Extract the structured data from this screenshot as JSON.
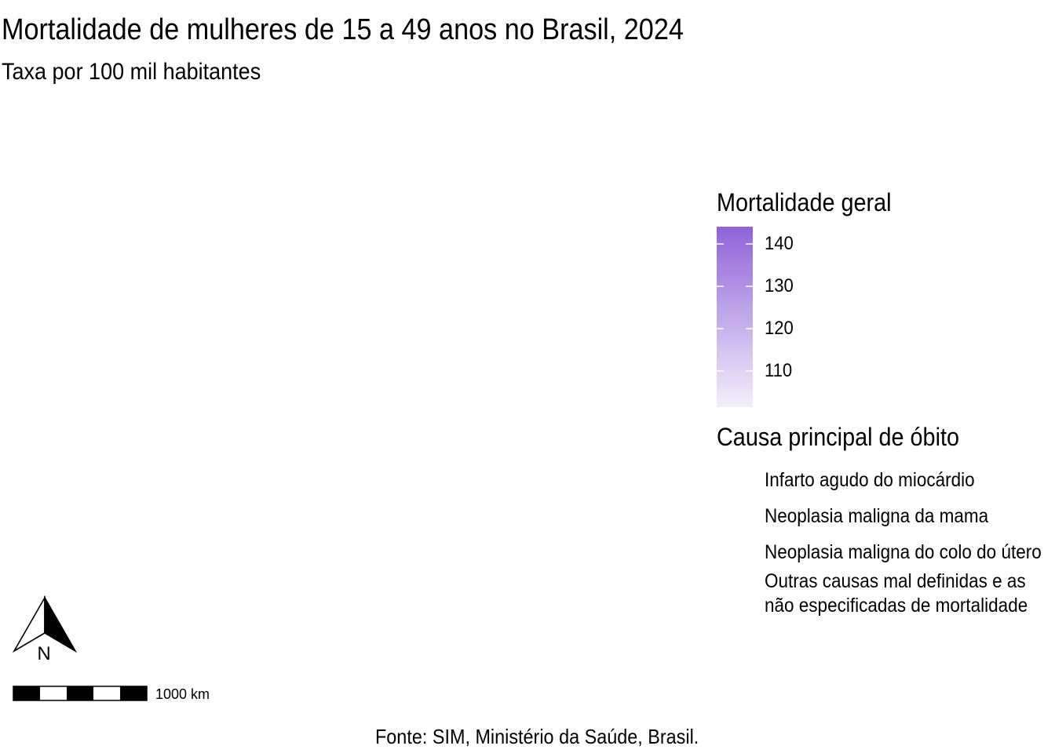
{
  "map": {
    "title": "Mortalidade de mulheres de 15 a 49 anos no Brasil, 2024",
    "subtitle": "Taxa por 100 mil habitantes",
    "caption": "Fonte: SIM, Ministério da Saúde, Brasil."
  },
  "legend_general": {
    "title": "Mortalidade geral",
    "ticks": [
      "140",
      "130",
      "120",
      "110"
    ],
    "color_low": "#f4effb",
    "color_high": "#8f63d8"
  },
  "legend_cause": {
    "title": "Causa principal de óbito",
    "items": [
      {
        "label": "Infarto agudo do miocárdio"
      },
      {
        "label": "Neoplasia maligna da mama"
      },
      {
        "label": "Neoplasia maligna do colo do útero"
      },
      {
        "label_line1": "Outras causas mal definidas e as",
        "label_line2": "não especificadas de mortalidade"
      }
    ]
  },
  "north_arrow": {
    "label": "N"
  },
  "scale_bar": {
    "label": "1000 km"
  }
}
